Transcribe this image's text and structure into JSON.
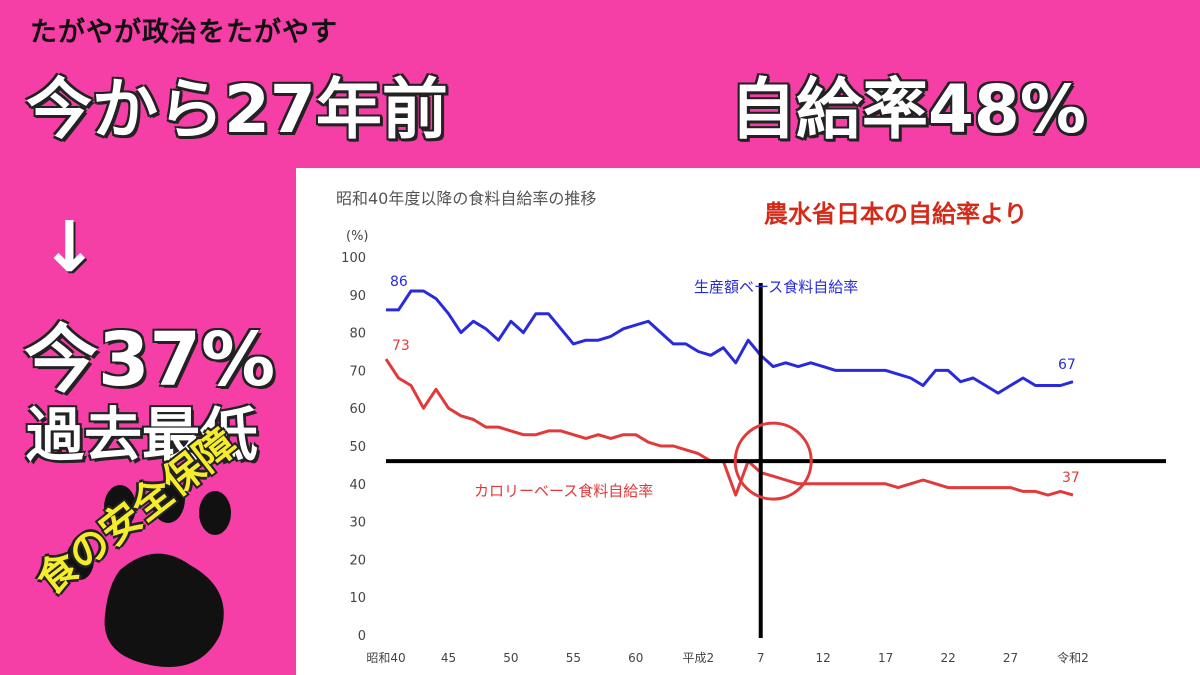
{
  "header": {
    "tag": "たがやが政治をたがやす",
    "headline_left": "今から27年前",
    "headline_right": "自給率48%"
  },
  "left_panel": {
    "arrow": "↓",
    "now_text": "今37%",
    "lowest_text": "過去最低",
    "slogan": "食の安全保障"
  },
  "colors": {
    "background": "#f53fa6",
    "production": "#2a2add",
    "calorie": "#e03a3a",
    "source": "#d42a1a",
    "slogan": "#f5ec2c"
  },
  "chart_data": {
    "type": "line",
    "title": "昭和40年度以降の食料自給率の推移",
    "source_note": "農水省日本の自給率より",
    "ylabel": "(%)",
    "ylim": [
      0,
      100
    ],
    "yticks": [
      0,
      10,
      20,
      30,
      40,
      50,
      60,
      70,
      80,
      90,
      100
    ],
    "xlim": [
      1965,
      2020
    ],
    "xticks": [
      {
        "x": 1965,
        "label": "昭和40"
      },
      {
        "x": 1970,
        "label": "45"
      },
      {
        "x": 1975,
        "label": "50"
      },
      {
        "x": 1980,
        "label": "55"
      },
      {
        "x": 1985,
        "label": "60"
      },
      {
        "x": 1990,
        "label": "平成2"
      },
      {
        "x": 1995,
        "label": "7"
      },
      {
        "x": 2000,
        "label": "12"
      },
      {
        "x": 2005,
        "label": "17"
      },
      {
        "x": 2010,
        "label": "22"
      },
      {
        "x": 2015,
        "label": "27"
      },
      {
        "x": 2020,
        "label": "令和2"
      }
    ],
    "series": [
      {
        "name": "生産額ベース食料自給率",
        "x": [
          1965,
          1966,
          1967,
          1968,
          1969,
          1970,
          1971,
          1972,
          1973,
          1974,
          1975,
          1976,
          1977,
          1978,
          1979,
          1980,
          1981,
          1982,
          1983,
          1984,
          1985,
          1986,
          1987,
          1988,
          1989,
          1990,
          1991,
          1992,
          1993,
          1994,
          1995,
          1996,
          1997,
          1998,
          1999,
          2000,
          2001,
          2002,
          2003,
          2004,
          2005,
          2006,
          2007,
          2008,
          2009,
          2010,
          2011,
          2012,
          2013,
          2014,
          2015,
          2016,
          2017,
          2018,
          2019,
          2020
        ],
        "values": [
          86,
          86,
          91,
          91,
          89,
          85,
          80,
          83,
          81,
          78,
          83,
          80,
          85,
          85,
          81,
          77,
          78,
          78,
          79,
          81,
          82,
          83,
          80,
          77,
          77,
          75,
          74,
          76,
          72,
          78,
          74,
          71,
          72,
          71,
          72,
          71,
          70,
          70,
          70,
          70,
          70,
          69,
          68,
          66,
          70,
          70,
          67,
          68,
          66,
          64,
          66,
          68,
          66,
          66,
          66,
          67
        ],
        "start_label": "86",
        "end_label": "67"
      },
      {
        "name": "カロリーベース食料自給率",
        "x": [
          1965,
          1966,
          1967,
          1968,
          1969,
          1970,
          1971,
          1972,
          1973,
          1974,
          1975,
          1976,
          1977,
          1978,
          1979,
          1980,
          1981,
          1982,
          1983,
          1984,
          1985,
          1986,
          1987,
          1988,
          1989,
          1990,
          1991,
          1992,
          1993,
          1994,
          1995,
          1996,
          1997,
          1998,
          1999,
          2000,
          2001,
          2002,
          2003,
          2004,
          2005,
          2006,
          2007,
          2008,
          2009,
          2010,
          2011,
          2012,
          2013,
          2014,
          2015,
          2016,
          2017,
          2018,
          2019,
          2020
        ],
        "values": [
          73,
          68,
          66,
          60,
          65,
          60,
          58,
          57,
          55,
          55,
          54,
          53,
          53,
          54,
          54,
          53,
          52,
          53,
          52,
          53,
          53,
          51,
          50,
          50,
          49,
          48,
          46,
          46,
          37,
          46,
          43,
          42,
          41,
          40,
          40,
          40,
          40,
          40,
          40,
          40,
          40,
          39,
          40,
          41,
          40,
          39,
          39,
          39,
          39,
          39,
          39,
          38,
          38,
          37,
          38,
          37
        ],
        "start_label": "73",
        "end_label": "37"
      }
    ],
    "annotations": {
      "vertical_line_x": 1995,
      "horizontal_line_y": 46,
      "circle_center": {
        "x": 1996,
        "y": 46
      }
    }
  }
}
